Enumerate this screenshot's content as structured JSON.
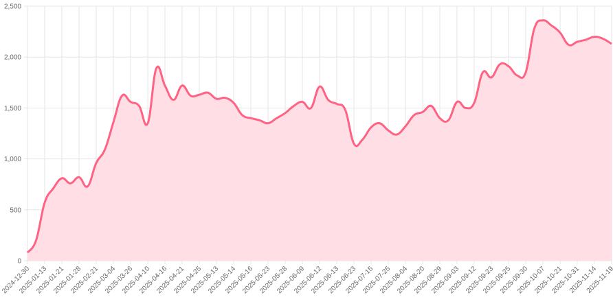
{
  "chart_data": {
    "type": "line",
    "categories": [
      "2024-12-30",
      null,
      "2025-01-13",
      null,
      "2025-01-21",
      null,
      "2025-01-28",
      null,
      "2025-02-21",
      null,
      "2025-03-04",
      null,
      "2025-03-26",
      null,
      "2025-04-10",
      null,
      "2025-04-16",
      null,
      "2025-04-21",
      null,
      "2025-04-25",
      null,
      "2025-05-13",
      null,
      "2025-05-14",
      null,
      "2025-05-16",
      null,
      "2025-05-23",
      null,
      "2025-05-28",
      null,
      "2025-06-09",
      null,
      "2025-06-12",
      null,
      "2025-06-13",
      null,
      "2025-06-23",
      null,
      "2025-07-15",
      null,
      "2025-07-25",
      null,
      "2025-08-04",
      null,
      "2025-08-20",
      null,
      "2025-08-29",
      null,
      "2025-09-03",
      null,
      "2025-09-12",
      null,
      "2025-09-23",
      null,
      "2025-09-25",
      null,
      "2025-09-30",
      null,
      "2025-10-07",
      null,
      "2025-10-21",
      null,
      "2025-10-31",
      null,
      "2025-11-14",
      null,
      "2025-11-19"
    ],
    "values": [
      80,
      200,
      570,
      710,
      810,
      760,
      820,
      730,
      960,
      1090,
      1360,
      1620,
      1560,
      1520,
      1350,
      1890,
      1720,
      1580,
      1720,
      1620,
      1630,
      1650,
      1590,
      1600,
      1550,
      1430,
      1400,
      1380,
      1350,
      1400,
      1450,
      1520,
      1560,
      1500,
      1710,
      1580,
      1540,
      1480,
      1150,
      1190,
      1310,
      1350,
      1280,
      1240,
      1320,
      1430,
      1460,
      1520,
      1400,
      1380,
      1560,
      1500,
      1550,
      1850,
      1800,
      1930,
      1910,
      1820,
      1850,
      2280,
      2360,
      2310,
      2240,
      2120,
      2150,
      2170,
      2200,
      2180,
      2130
    ],
    "color": "#ff6384",
    "fill_color": "#ffdfe5",
    "ylim": [
      0,
      2500
    ],
    "yticks": [
      0,
      500,
      {
        "value": 1000,
        "label": "1,000"
      },
      {
        "value": 1500,
        "label": "1,500"
      },
      {
        "value": 2000,
        "label": "2,000"
      },
      {
        "value": 2500,
        "label": "2,500"
      }
    ],
    "grid": true
  }
}
